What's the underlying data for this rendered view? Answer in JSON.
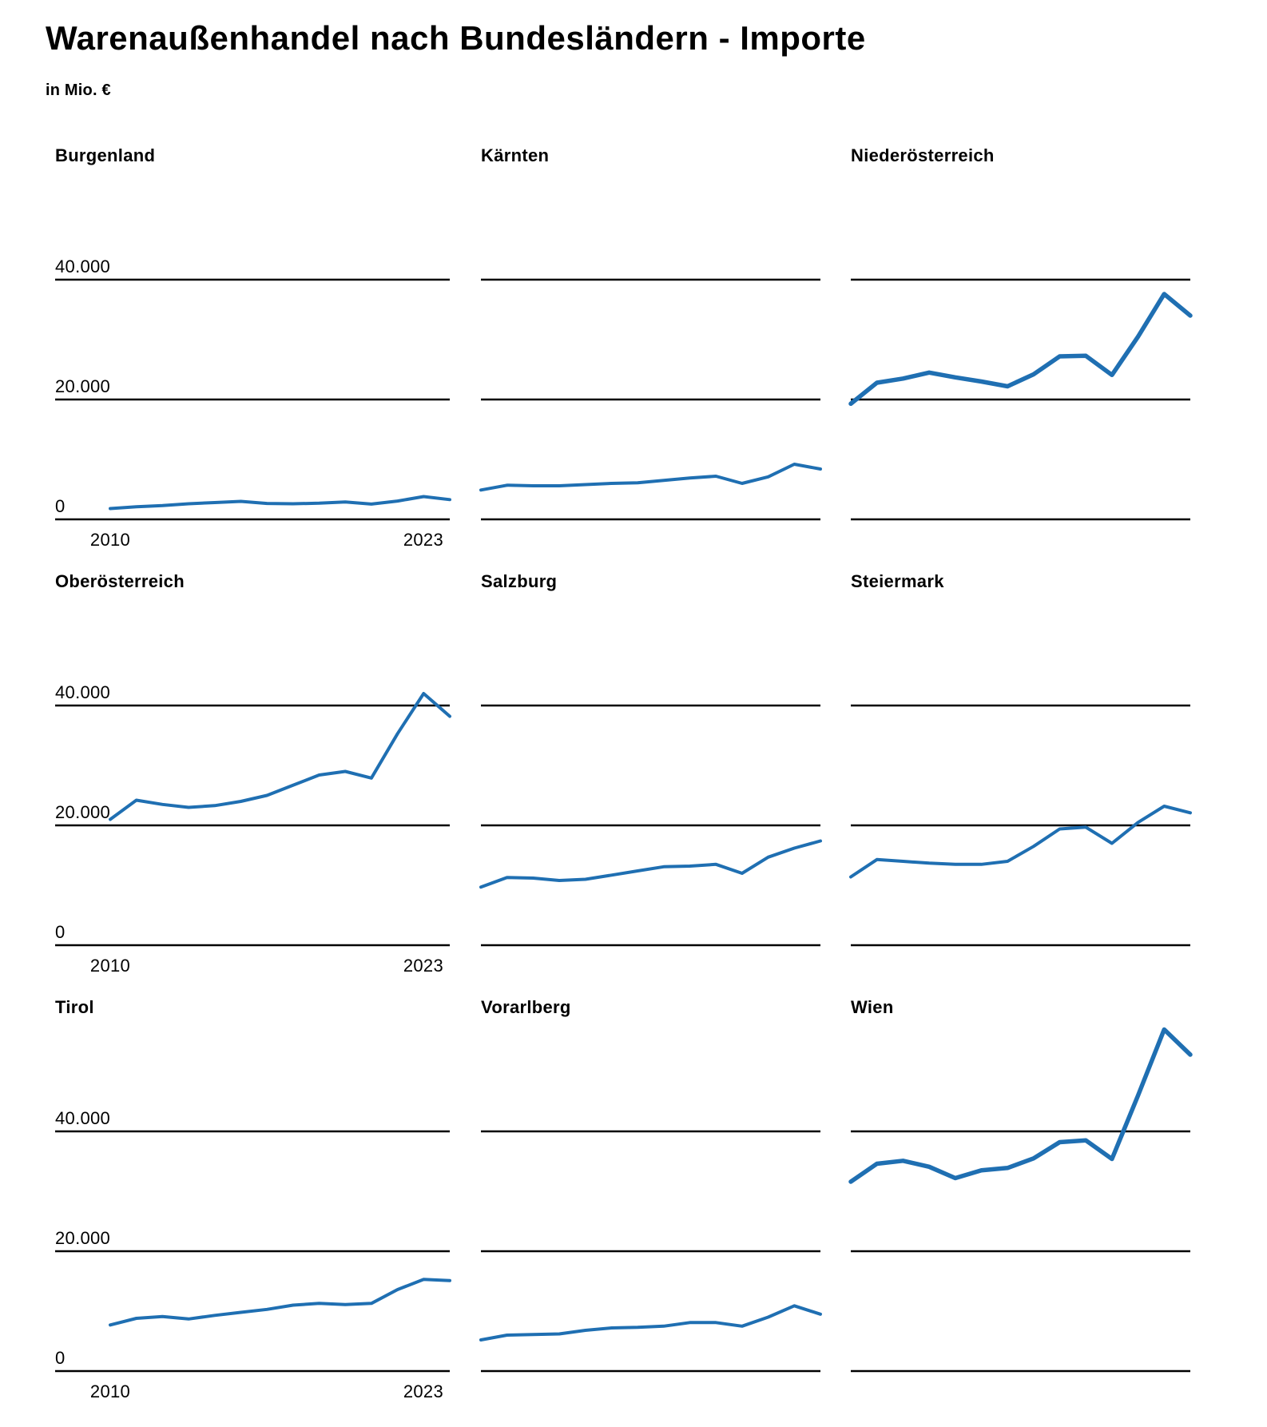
{
  "page": {
    "title": "Warenaußenhandel nach Bundesländern - Importe",
    "subtitle": "in Mio. €"
  },
  "axis": {
    "x_first": "2010",
    "x_last": "2023",
    "y_ticks": [
      "40.000",
      "20.000",
      "0"
    ]
  },
  "colors": {
    "line": "#1f6fb2",
    "grid": "#000000",
    "text": "#000000",
    "background": "#ffffff"
  },
  "chart_data": {
    "type": "line",
    "layout": "3x3 small multiples",
    "title": "Warenaußenhandel nach Bundesländern - Importe",
    "unit": "Mio. €",
    "x": [
      2010,
      2011,
      2012,
      2013,
      2014,
      2015,
      2016,
      2017,
      2018,
      2019,
      2020,
      2021,
      2022,
      2023
    ],
    "x_tick_labels_shown": [
      "2010",
      "2023"
    ],
    "ylim": [
      0,
      60000
    ],
    "y_gridlines": [
      0,
      20000,
      40000
    ],
    "grid": true,
    "legend": "none",
    "series": [
      {
        "name": "Burgenland",
        "emphasized": false,
        "values": [
          1800,
          2100,
          2300,
          2600,
          2800,
          3000,
          2650,
          2600,
          2700,
          2900,
          2550,
          3050,
          3800,
          3300
        ]
      },
      {
        "name": "Kärnten",
        "emphasized": false,
        "values": [
          4900,
          5700,
          5600,
          5600,
          5800,
          6000,
          6100,
          6500,
          6900,
          7200,
          6000,
          7100,
          9200,
          8400
        ]
      },
      {
        "name": "Niederösterreich",
        "emphasized": true,
        "values": [
          19300,
          22800,
          23500,
          24500,
          23700,
          23000,
          22200,
          24200,
          27200,
          27300,
          24100,
          30500,
          37600,
          34000
        ]
      },
      {
        "name": "Oberösterreich",
        "emphasized": false,
        "values": [
          21000,
          24200,
          23500,
          23000,
          23300,
          24000,
          25000,
          26700,
          28400,
          29000,
          27900,
          35300,
          42000,
          38200
        ]
      },
      {
        "name": "Salzburg",
        "emphasized": false,
        "values": [
          9700,
          11300,
          11200,
          10800,
          11000,
          11700,
          12400,
          13100,
          13200,
          13500,
          12000,
          14700,
          16200,
          17400
        ]
      },
      {
        "name": "Steiermark",
        "emphasized": false,
        "values": [
          11400,
          14300,
          14000,
          13700,
          13500,
          13500,
          14000,
          16500,
          19400,
          19700,
          17000,
          20500,
          23200,
          22100
        ]
      },
      {
        "name": "Tirol",
        "emphasized": false,
        "values": [
          7700,
          8800,
          9100,
          8700,
          9300,
          9800,
          10300,
          11000,
          11300,
          11100,
          11300,
          13600,
          15300,
          15100
        ]
      },
      {
        "name": "Vorarlberg",
        "emphasized": false,
        "values": [
          5200,
          6000,
          6100,
          6200,
          6800,
          7200,
          7300,
          7500,
          8100,
          8100,
          7500,
          9000,
          10900,
          9500
        ]
      },
      {
        "name": "Wien",
        "emphasized": true,
        "values": [
          31600,
          34600,
          35100,
          34100,
          32200,
          33500,
          33900,
          35500,
          38200,
          38500,
          35400,
          46000,
          57000,
          52800
        ]
      }
    ]
  }
}
